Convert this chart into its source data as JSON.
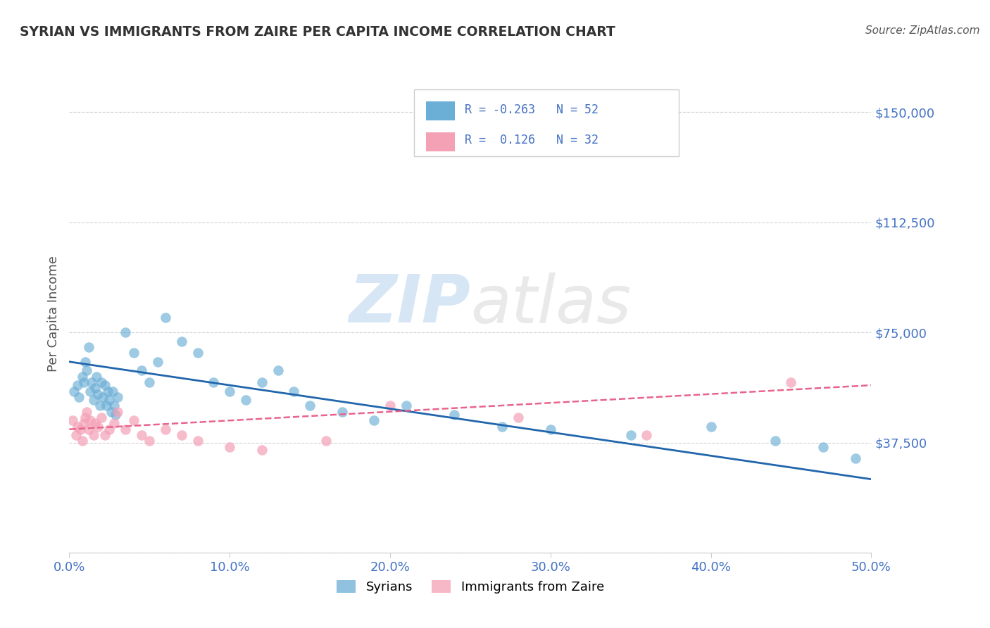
{
  "title": "SYRIAN VS IMMIGRANTS FROM ZAIRE PER CAPITA INCOME CORRELATION CHART",
  "source": "Source: ZipAtlas.com",
  "ylabel": "Per Capita Income",
  "xlim": [
    0.0,
    50.0
  ],
  "ylim": [
    0,
    162500
  ],
  "yticks": [
    0,
    37500,
    75000,
    112500,
    150000
  ],
  "ytick_labels": [
    "",
    "$37,500",
    "$75,000",
    "$112,500",
    "$150,000"
  ],
  "xticks": [
    0,
    10,
    20,
    30,
    40,
    50
  ],
  "xtick_labels": [
    "0.0%",
    "10.0%",
    "20.0%",
    "30.0%",
    "40.0%",
    "50.0%"
  ],
  "background_color": "#ffffff",
  "grid_color": "#cccccc",
  "watermark_zip": "ZIP",
  "watermark_atlas": "atlas",
  "blue_color": "#6baed6",
  "pink_color": "#f4a0b5",
  "blue_line_color": "#2166ac",
  "pink_line_color": "#e8648c",
  "title_color": "#333333",
  "tick_label_color": "#4472c4",
  "ylabel_color": "#555555",
  "source_color": "#555555",
  "syrians_x": [
    0.3,
    0.5,
    0.6,
    0.8,
    0.9,
    1.0,
    1.1,
    1.2,
    1.3,
    1.4,
    1.5,
    1.6,
    1.7,
    1.8,
    1.9,
    2.0,
    2.1,
    2.2,
    2.3,
    2.4,
    2.5,
    2.6,
    2.7,
    2.8,
    2.9,
    3.0,
    3.5,
    4.0,
    4.5,
    5.0,
    5.5,
    6.0,
    7.0,
    8.0,
    9.0,
    10.0,
    11.0,
    12.0,
    13.0,
    14.0,
    15.0,
    17.0,
    19.0,
    21.0,
    24.0,
    27.0,
    30.0,
    35.0,
    40.0,
    44.0,
    47.0,
    49.0
  ],
  "syrians_y": [
    55000,
    57000,
    53000,
    60000,
    58000,
    65000,
    62000,
    70000,
    55000,
    58000,
    52000,
    56000,
    60000,
    54000,
    50000,
    58000,
    53000,
    57000,
    50000,
    55000,
    52000,
    48000,
    55000,
    50000,
    47000,
    53000,
    75000,
    68000,
    62000,
    58000,
    65000,
    80000,
    72000,
    68000,
    58000,
    55000,
    52000,
    58000,
    62000,
    55000,
    50000,
    48000,
    45000,
    50000,
    47000,
    43000,
    42000,
    40000,
    43000,
    38000,
    36000,
    32000
  ],
  "zaire_x": [
    0.2,
    0.4,
    0.5,
    0.7,
    0.8,
    0.9,
    1.0,
    1.1,
    1.2,
    1.3,
    1.5,
    1.6,
    1.8,
    2.0,
    2.2,
    2.5,
    2.8,
    3.0,
    3.5,
    4.0,
    4.5,
    5.0,
    6.0,
    7.0,
    8.0,
    10.0,
    12.0,
    16.0,
    20.0,
    28.0,
    36.0,
    45.0
  ],
  "zaire_y": [
    45000,
    40000,
    43000,
    42000,
    38000,
    44000,
    46000,
    48000,
    42000,
    45000,
    40000,
    44000,
    43000,
    46000,
    40000,
    42000,
    44000,
    48000,
    42000,
    45000,
    40000,
    38000,
    42000,
    40000,
    38000,
    36000,
    35000,
    38000,
    50000,
    46000,
    40000,
    58000
  ],
  "blue_trendline_x": [
    0.0,
    50.0
  ],
  "blue_trendline_y": [
    65000,
    25000
  ],
  "pink_trendline_x": [
    0.0,
    50.0
  ],
  "pink_trendline_y": [
    42000,
    57000
  ]
}
